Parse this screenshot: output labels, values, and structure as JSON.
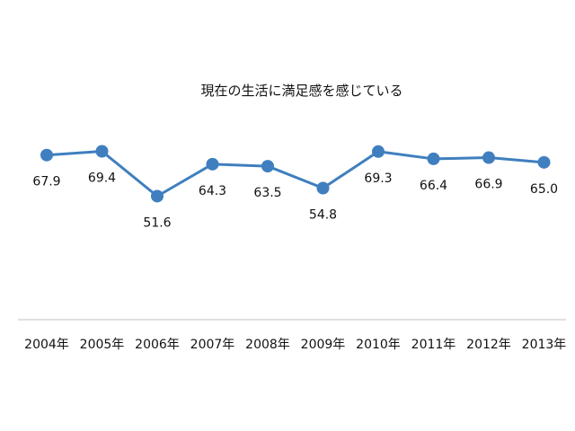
{
  "chart_data": {
    "type": "line",
    "title": "現在の生活に満足感を感じている",
    "categories": [
      "2004年",
      "2005年",
      "2006年",
      "2007年",
      "2008年",
      "2009年",
      "2010年",
      "2011年",
      "2012年",
      "2013年"
    ],
    "series": [
      {
        "values": [
          67.9,
          69.4,
          51.6,
          64.3,
          63.5,
          54.8,
          69.3,
          66.4,
          66.9,
          65.0
        ],
        "labels": [
          "67.9",
          "69.4",
          "51.6",
          "64.3",
          "63.5",
          "54.8",
          "69.3",
          "66.4",
          "66.9",
          "65.0"
        ],
        "color": "#3f7fbf"
      }
    ],
    "xlabel": "",
    "ylabel": "",
    "ylim": [
      0,
      80
    ],
    "grid": false,
    "legend": "none",
    "axis_color": "#bfbfbf"
  }
}
